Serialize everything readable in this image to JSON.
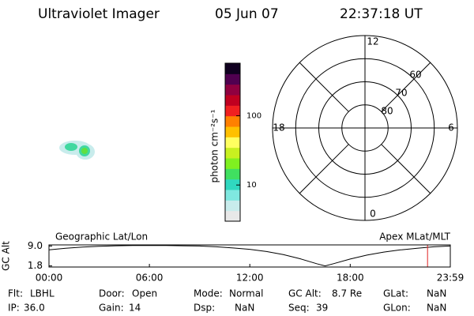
{
  "header": {
    "title": "Ultraviolet Imager",
    "date": "05 Jun 07",
    "time": "22:37:18 UT"
  },
  "colorbar": {
    "label": "photon cm⁻²s⁻¹",
    "log": true,
    "lim": [
      3,
      575
    ],
    "ticks": [
      10,
      100
    ],
    "colors": [
      "#e8e8e8",
      "#c8ecec",
      "#7fe8e0",
      "#30d8c0",
      "#40e060",
      "#80f020",
      "#c8f020",
      "#ffff60",
      "#ffc000",
      "#ff8000",
      "#f02020",
      "#c00020",
      "#900040",
      "#500050",
      "#100020"
    ]
  },
  "polar": {
    "rlim": [
      90,
      50
    ],
    "lat_ticks": [
      80,
      70,
      60
    ],
    "mlt_ticks": [
      12,
      18,
      6,
      0
    ]
  },
  "chart_data": {
    "type": "line",
    "ylabel": "GC Alt",
    "left_title": "Geographic Lat/Lon",
    "right_title": "Apex MLat/MLT",
    "x": [
      0,
      1,
      2,
      3,
      4,
      5,
      6,
      7,
      8,
      9,
      10,
      11,
      12,
      13,
      14,
      15,
      16,
      16.5,
      17,
      18,
      19,
      20,
      21,
      22,
      23,
      23.98
    ],
    "values": [
      7.6,
      8.2,
      8.6,
      8.9,
      9.1,
      9.2,
      9.2,
      9.2,
      9.1,
      9.0,
      8.7,
      8.3,
      7.8,
      7.0,
      5.9,
      4.4,
      2.6,
      1.8,
      2.6,
      4.3,
      5.7,
      6.8,
      7.6,
      8.2,
      8.7,
      9.0
    ],
    "color": "#000000",
    "xlim": [
      0,
      23.98
    ],
    "ylim": [
      1.4,
      9.4
    ],
    "xticks": [
      {
        "value": 0,
        "label": "00:00"
      },
      {
        "value": 6,
        "label": "06:00"
      },
      {
        "value": 12,
        "label": "12:00"
      },
      {
        "value": 18,
        "label": "18:00"
      },
      {
        "value": 23.98,
        "label": "23:59"
      }
    ],
    "yticks": [
      1.8,
      {
        "value": 9,
        "label": "9.0"
      }
    ],
    "marker_x": 22.62,
    "marker_color": "#e02020"
  },
  "status": [
    {
      "label": "Flt:",
      "value": "LBHL"
    },
    {
      "label": "Door:",
      "value": "Open"
    },
    {
      "label": "Mode:",
      "value": "Normal"
    },
    {
      "label": "GC Alt:",
      "value": "8.7 Re"
    },
    {
      "label": "GLat:",
      "value": "NaN"
    },
    {
      "label": "IP:",
      "value": "36.0"
    },
    {
      "label": "Gain:",
      "value": "14"
    },
    {
      "label": "Dsp:",
      "value": "NaN"
    },
    {
      "label": "Seq:",
      "value": "39"
    },
    {
      "label": "GLon:",
      "value": "NaN"
    }
  ]
}
